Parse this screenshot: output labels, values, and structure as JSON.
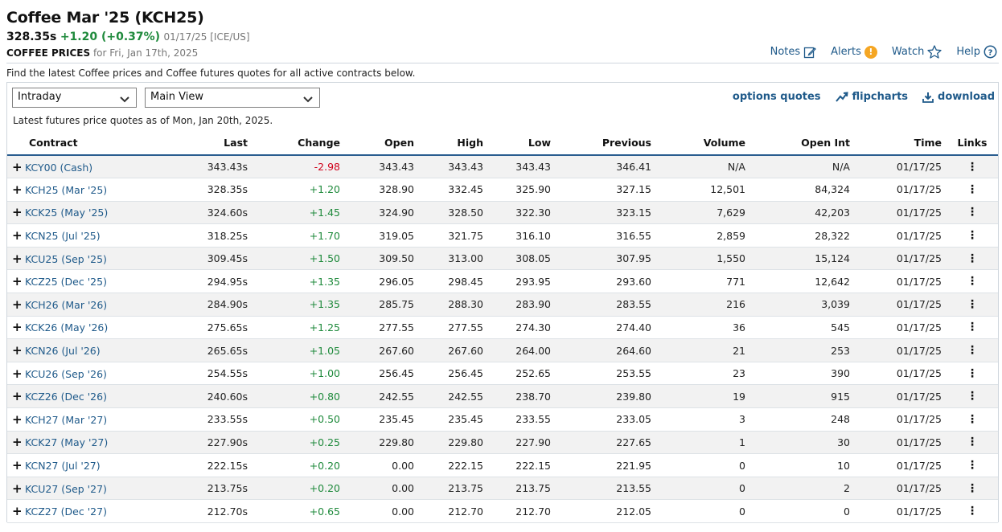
{
  "header": {
    "title": "Coffee Mar '25 (KCH25)",
    "last": "328.35s",
    "change": "+1.20 (+0.37%)",
    "meta": "01/17/25 [ICE/US]",
    "sub_bold": "COFFEE PRICES",
    "sub_rest": "for Fri, Jan 17th, 2025"
  },
  "toplinks": {
    "notes": "Notes",
    "alerts": "Alerts",
    "alert_glyph": "!",
    "watch": "Watch",
    "help": "Help"
  },
  "description": "Find the latest Coffee prices and Coffee futures quotes for all active contracts below.",
  "controls": {
    "interval": "Intraday",
    "view": "Main View"
  },
  "actions": {
    "options": "options quotes",
    "flipcharts": "flipcharts",
    "download": "download"
  },
  "asof": "Latest futures price quotes as of Mon, Jan 20th, 2025.",
  "colors": {
    "link": "#1f5a8a",
    "positive": "#1f8a3c",
    "negative": "#d0021b",
    "accent_rule": "#2a5d8f",
    "alert": "#f5a623"
  },
  "table": {
    "headers": [
      "Contract",
      "Last",
      "Change",
      "Open",
      "High",
      "Low",
      "Previous",
      "Volume",
      "Open Int",
      "Time",
      "Links"
    ],
    "rows": [
      {
        "contract": "KCY00 (Cash)",
        "last": "343.43s",
        "change": "-2.98",
        "open": "343.43",
        "high": "343.43",
        "low": "343.43",
        "previous": "346.41",
        "volume": "N/A",
        "open_int": "N/A",
        "time": "01/17/25"
      },
      {
        "contract": "KCH25 (Mar '25)",
        "last": "328.35s",
        "change": "+1.20",
        "open": "328.90",
        "high": "332.45",
        "low": "325.90",
        "previous": "327.15",
        "volume": "12,501",
        "open_int": "84,324",
        "time": "01/17/25"
      },
      {
        "contract": "KCK25 (May '25)",
        "last": "324.60s",
        "change": "+1.45",
        "open": "324.90",
        "high": "328.50",
        "low": "322.30",
        "previous": "323.15",
        "volume": "7,629",
        "open_int": "42,203",
        "time": "01/17/25"
      },
      {
        "contract": "KCN25 (Jul '25)",
        "last": "318.25s",
        "change": "+1.70",
        "open": "319.05",
        "high": "321.75",
        "low": "316.10",
        "previous": "316.55",
        "volume": "2,859",
        "open_int": "28,322",
        "time": "01/17/25"
      },
      {
        "contract": "KCU25 (Sep '25)",
        "last": "309.45s",
        "change": "+1.50",
        "open": "309.50",
        "high": "313.00",
        "low": "308.05",
        "previous": "307.95",
        "volume": "1,550",
        "open_int": "15,124",
        "time": "01/17/25"
      },
      {
        "contract": "KCZ25 (Dec '25)",
        "last": "294.95s",
        "change": "+1.35",
        "open": "296.05",
        "high": "298.45",
        "low": "293.95",
        "previous": "293.60",
        "volume": "771",
        "open_int": "12,642",
        "time": "01/17/25"
      },
      {
        "contract": "KCH26 (Mar '26)",
        "last": "284.90s",
        "change": "+1.35",
        "open": "285.75",
        "high": "288.30",
        "low": "283.90",
        "previous": "283.55",
        "volume": "216",
        "open_int": "3,039",
        "time": "01/17/25"
      },
      {
        "contract": "KCK26 (May '26)",
        "last": "275.65s",
        "change": "+1.25",
        "open": "277.55",
        "high": "277.55",
        "low": "274.30",
        "previous": "274.40",
        "volume": "36",
        "open_int": "545",
        "time": "01/17/25"
      },
      {
        "contract": "KCN26 (Jul '26)",
        "last": "265.65s",
        "change": "+1.05",
        "open": "267.60",
        "high": "267.60",
        "low": "264.00",
        "previous": "264.60",
        "volume": "21",
        "open_int": "253",
        "time": "01/17/25"
      },
      {
        "contract": "KCU26 (Sep '26)",
        "last": "254.55s",
        "change": "+1.00",
        "open": "256.45",
        "high": "256.45",
        "low": "252.65",
        "previous": "253.55",
        "volume": "23",
        "open_int": "390",
        "time": "01/17/25"
      },
      {
        "contract": "KCZ26 (Dec '26)",
        "last": "240.60s",
        "change": "+0.80",
        "open": "242.55",
        "high": "242.55",
        "low": "238.70",
        "previous": "239.80",
        "volume": "19",
        "open_int": "915",
        "time": "01/17/25"
      },
      {
        "contract": "KCH27 (Mar '27)",
        "last": "233.55s",
        "change": "+0.50",
        "open": "235.45",
        "high": "235.45",
        "low": "233.55",
        "previous": "233.05",
        "volume": "3",
        "open_int": "248",
        "time": "01/17/25"
      },
      {
        "contract": "KCK27 (May '27)",
        "last": "227.90s",
        "change": "+0.25",
        "open": "229.80",
        "high": "229.80",
        "low": "227.90",
        "previous": "227.65",
        "volume": "1",
        "open_int": "30",
        "time": "01/17/25"
      },
      {
        "contract": "KCN27 (Jul '27)",
        "last": "222.15s",
        "change": "+0.20",
        "open": "0.00",
        "high": "222.15",
        "low": "222.15",
        "previous": "221.95",
        "volume": "0",
        "open_int": "10",
        "time": "01/17/25"
      },
      {
        "contract": "KCU27 (Sep '27)",
        "last": "213.75s",
        "change": "+0.20",
        "open": "0.00",
        "high": "213.75",
        "low": "213.75",
        "previous": "213.55",
        "volume": "0",
        "open_int": "2",
        "time": "01/17/25"
      },
      {
        "contract": "KCZ27 (Dec '27)",
        "last": "212.70s",
        "change": "+0.65",
        "open": "0.00",
        "high": "212.70",
        "low": "212.70",
        "previous": "212.05",
        "volume": "0",
        "open_int": "0",
        "time": "01/17/25"
      }
    ]
  }
}
